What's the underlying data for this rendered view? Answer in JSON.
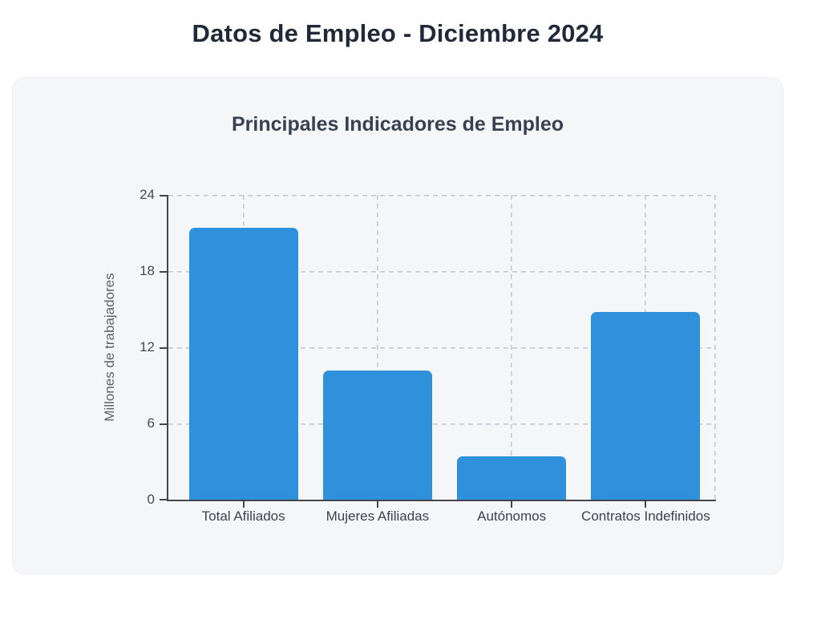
{
  "page": {
    "title": "Datos de Empleo - Diciembre 2024"
  },
  "chart_data": {
    "type": "bar",
    "title": "Principales Indicadores de Empleo",
    "categories": [
      "Total Afiliados",
      "Mujeres Afiliadas",
      "Autónomos",
      "Contratos Indefinidos"
    ],
    "values": [
      21.4,
      10.2,
      3.4,
      14.8
    ],
    "xlabel": "",
    "ylabel": "Millones de trabajadores",
    "ylim": [
      0,
      24
    ],
    "yticks": [
      0,
      6,
      12,
      18,
      24
    ],
    "grid": "dashed-horizontal-and-vertical",
    "legend": "none",
    "bar_color": "#2F90DB"
  },
  "colors": {
    "page_bg": "#ffffff",
    "card_bg": "#f5f6f8",
    "card_border": "#eceef2",
    "page_title_text": "#1f2937",
    "chart_title_text": "#374151",
    "axis_line": "#41464c",
    "tick_text": "#444b55",
    "y_axis_title_text": "#5b6169",
    "gridline": "#c5cad0",
    "bar": "#2F90DB"
  }
}
